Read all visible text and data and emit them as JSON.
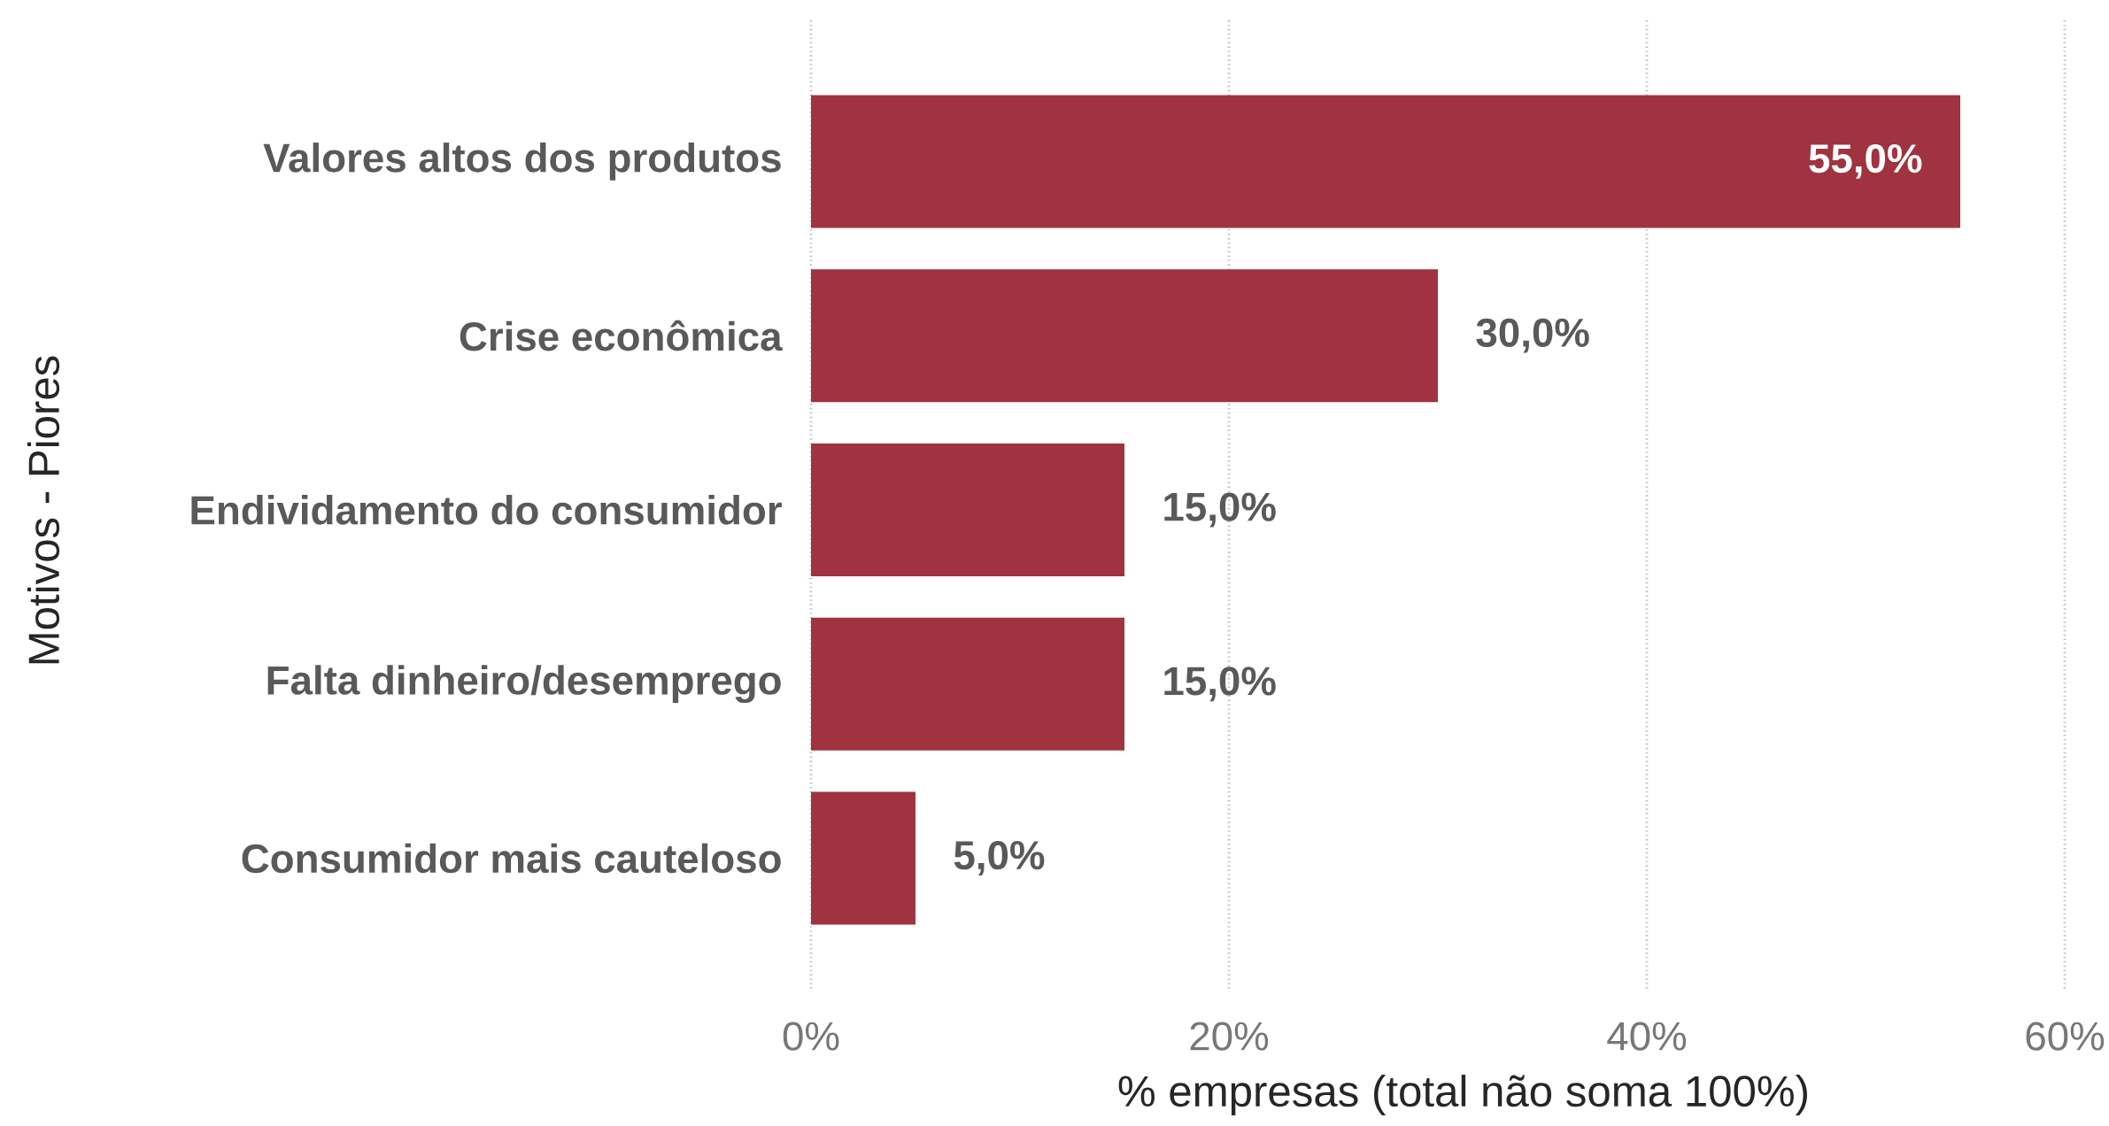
{
  "chart_data": {
    "type": "bar",
    "orientation": "horizontal",
    "categories": [
      "Valores altos dos produtos",
      "Crise econômica",
      "Endividamento do consumidor",
      "Falta dinheiro/desemprego",
      "Consumidor mais cauteloso"
    ],
    "values": [
      55,
      30,
      15,
      15,
      5
    ],
    "value_labels": [
      "55,0%",
      "30,0%",
      "15,0%",
      "15,0%",
      "5,0%"
    ],
    "color": "#a0333f",
    "xlim": [
      0,
      60
    ],
    "xticks": [
      {
        "value": 0,
        "label": "0%"
      },
      {
        "value": 20,
        "label": "20%"
      },
      {
        "value": 40,
        "label": "40%"
      },
      {
        "value": 60,
        "label": "60%"
      }
    ],
    "xlabel": "% empresas (total não soma 100%)",
    "ylabel": "Motivos - Piores",
    "grid": "x"
  }
}
